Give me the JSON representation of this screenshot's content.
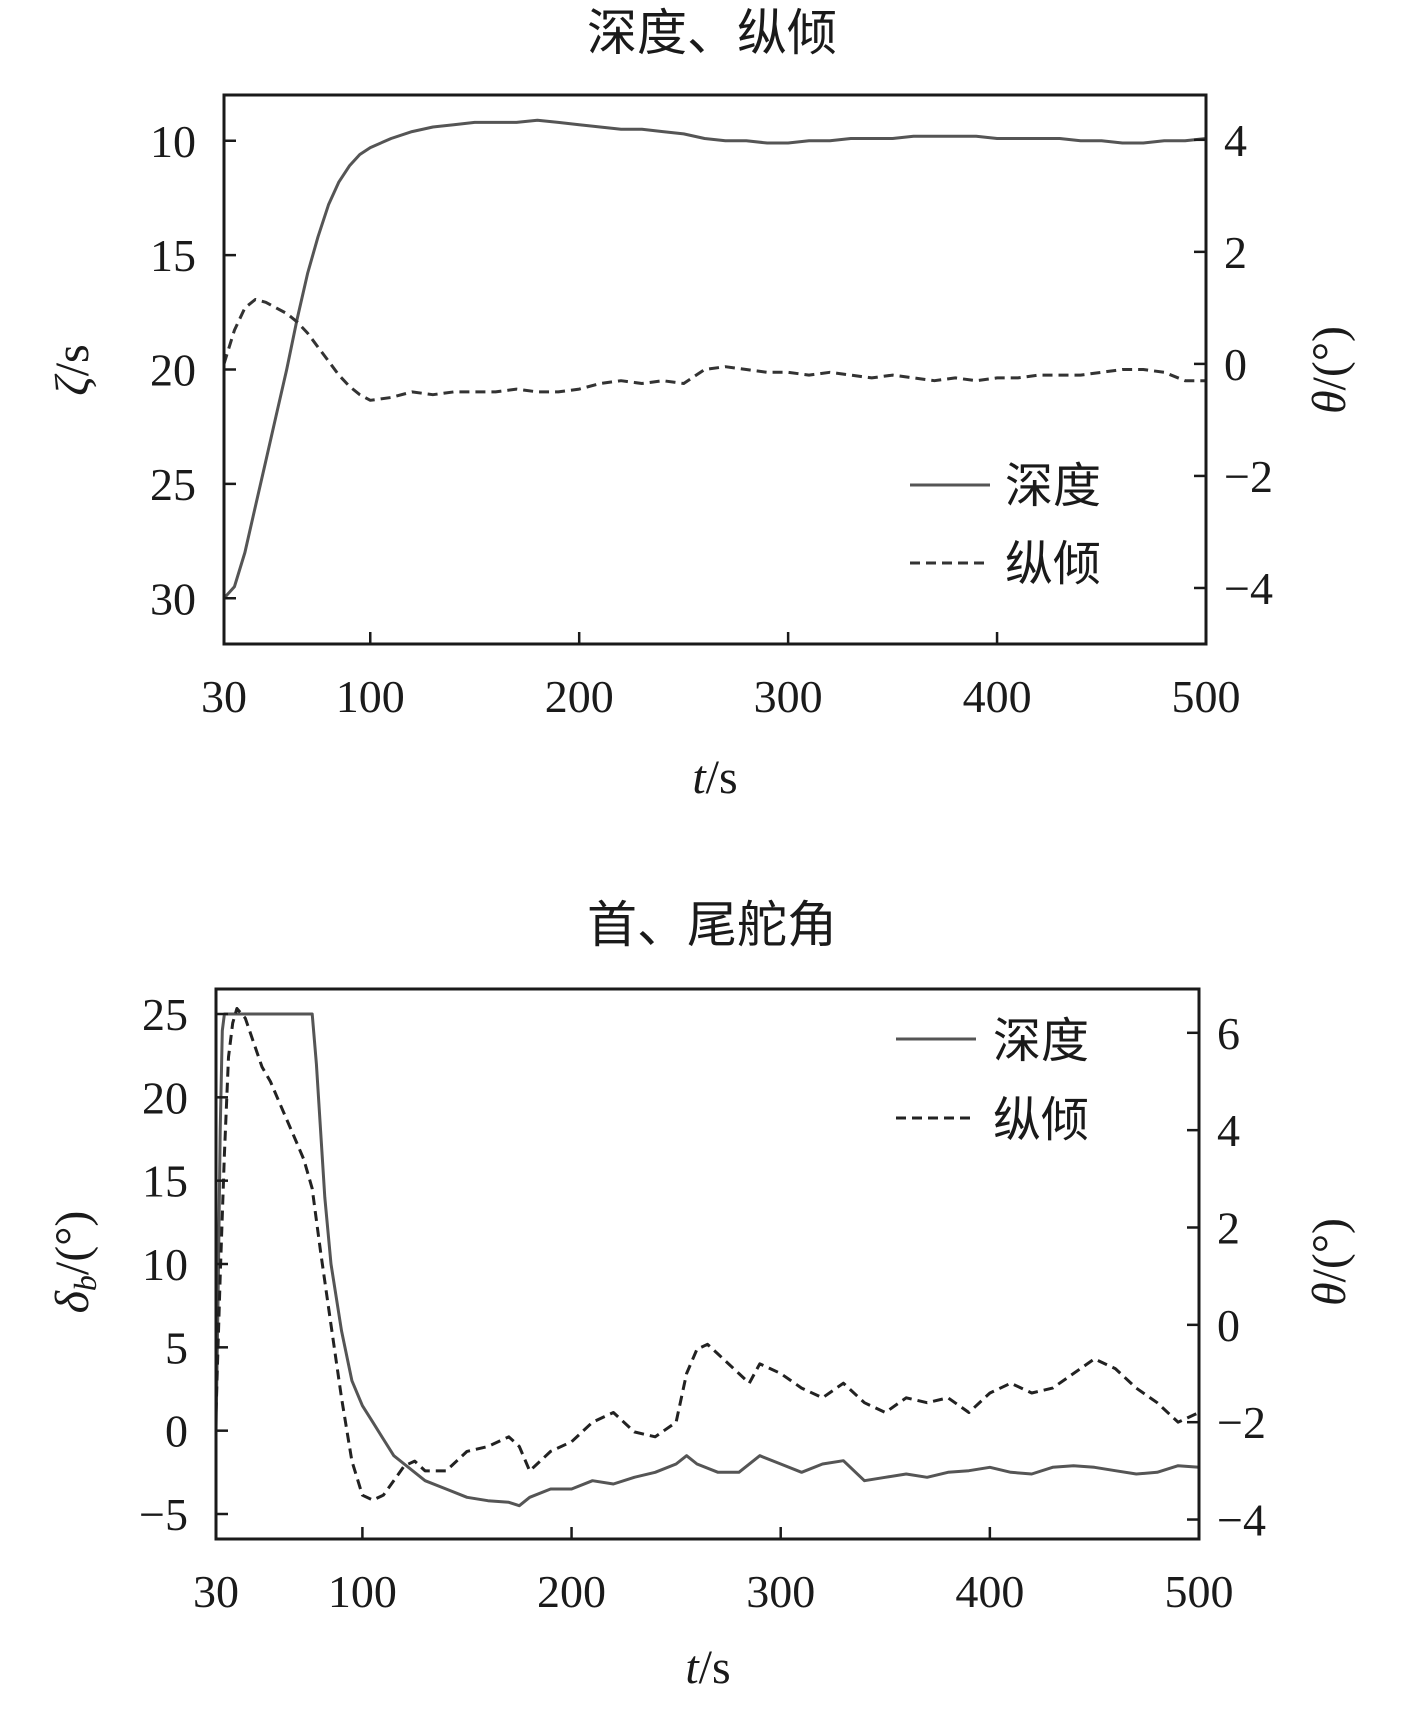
{
  "chart_data": [
    {
      "type": "line",
      "title": "深度、纵倾",
      "xlabel": "t/s",
      "ylabel": "ζ/s",
      "y2label": "θ/(°)",
      "xlim": [
        30,
        500
      ],
      "ylim": [
        32,
        8
      ],
      "y2lim": [
        -5,
        4.8
      ],
      "y_inverted": true,
      "xticks": [
        30,
        100,
        200,
        300,
        400,
        500
      ],
      "yticks": [
        10,
        15,
        20,
        25,
        30
      ],
      "y2ticks": [
        4,
        2,
        0,
        -2,
        -4
      ],
      "legend_position": "lower-right",
      "series": [
        {
          "name": "深度",
          "axis": "left",
          "style": "solid",
          "color": "#555555",
          "x": [
            30,
            35,
            40,
            45,
            50,
            55,
            60,
            65,
            70,
            75,
            80,
            85,
            90,
            95,
            100,
            110,
            120,
            130,
            140,
            150,
            160,
            170,
            180,
            190,
            200,
            210,
            220,
            230,
            240,
            250,
            260,
            270,
            280,
            290,
            300,
            310,
            320,
            330,
            340,
            350,
            360,
            370,
            380,
            390,
            400,
            410,
            420,
            430,
            440,
            450,
            460,
            470,
            480,
            490,
            500
          ],
          "values": [
            30,
            29.5,
            28,
            26,
            24,
            22,
            20,
            17.8,
            15.8,
            14.2,
            12.8,
            11.8,
            11.1,
            10.6,
            10.3,
            9.9,
            9.6,
            9.4,
            9.3,
            9.2,
            9.2,
            9.2,
            9.1,
            9.2,
            9.3,
            9.4,
            9.5,
            9.5,
            9.6,
            9.7,
            9.9,
            10.0,
            10.0,
            10.1,
            10.1,
            10.0,
            10.0,
            9.9,
            9.9,
            9.9,
            9.8,
            9.8,
            9.8,
            9.8,
            9.9,
            9.9,
            9.9,
            9.9,
            10.0,
            10.0,
            10.1,
            10.1,
            10.0,
            10.0,
            9.9
          ]
        },
        {
          "name": "纵倾",
          "axis": "right",
          "style": "dashed",
          "color": "#333333",
          "x": [
            30,
            35,
            40,
            45,
            50,
            55,
            60,
            65,
            70,
            75,
            80,
            85,
            90,
            95,
            100,
            110,
            120,
            130,
            140,
            150,
            160,
            170,
            180,
            190,
            200,
            210,
            220,
            230,
            240,
            250,
            260,
            270,
            280,
            290,
            300,
            310,
            320,
            330,
            340,
            350,
            360,
            370,
            380,
            390,
            400,
            410,
            420,
            430,
            440,
            450,
            460,
            470,
            480,
            490,
            500
          ],
          "values": [
            0,
            0.6,
            1.0,
            1.15,
            1.1,
            1.0,
            0.9,
            0.75,
            0.55,
            0.3,
            0.05,
            -0.2,
            -0.4,
            -0.55,
            -0.65,
            -0.6,
            -0.5,
            -0.55,
            -0.5,
            -0.5,
            -0.5,
            -0.45,
            -0.5,
            -0.5,
            -0.45,
            -0.35,
            -0.3,
            -0.35,
            -0.3,
            -0.35,
            -0.1,
            -0.05,
            -0.1,
            -0.15,
            -0.15,
            -0.2,
            -0.15,
            -0.2,
            -0.25,
            -0.2,
            -0.25,
            -0.3,
            -0.25,
            -0.3,
            -0.25,
            -0.25,
            -0.2,
            -0.2,
            -0.2,
            -0.15,
            -0.1,
            -0.1,
            -0.15,
            -0.3,
            -0.3
          ]
        }
      ]
    },
    {
      "type": "line",
      "title": "首、尾舵角",
      "xlabel": "t/s",
      "ylabel": "δb/(°)",
      "y2label": "θ/(°)",
      "xlim": [
        30,
        500
      ],
      "ylim": [
        -6.5,
        26.5
      ],
      "y2lim": [
        -4.4,
        6.9
      ],
      "xticks": [
        30,
        100,
        200,
        300,
        400,
        500
      ],
      "yticks": [
        25,
        20,
        15,
        10,
        5,
        0,
        -5
      ],
      "y2ticks": [
        6,
        4,
        2,
        0,
        -2,
        -4
      ],
      "legend_position": "top-right",
      "series": [
        {
          "name": "深度",
          "axis": "left",
          "style": "solid",
          "color": "#555555",
          "x": [
            30,
            31,
            32,
            33,
            34,
            40,
            50,
            60,
            70,
            76,
            78,
            80,
            82,
            85,
            90,
            95,
            100,
            105,
            110,
            115,
            120,
            130,
            140,
            150,
            160,
            170,
            175,
            180,
            190,
            200,
            210,
            220,
            230,
            240,
            250,
            255,
            260,
            270,
            280,
            290,
            300,
            310,
            320,
            330,
            340,
            350,
            360,
            370,
            380,
            390,
            400,
            410,
            420,
            430,
            440,
            450,
            460,
            470,
            480,
            490,
            500
          ],
          "values": [
            0,
            8,
            18,
            24,
            25,
            25,
            25,
            25,
            25,
            25,
            22,
            18,
            14,
            10,
            6,
            3,
            1.5,
            0.5,
            -0.5,
            -1.5,
            -2,
            -3,
            -3.5,
            -4,
            -4.2,
            -4.3,
            -4.5,
            -4,
            -3.5,
            -3.5,
            -3,
            -3.2,
            -2.8,
            -2.5,
            -2,
            -1.5,
            -2,
            -2.5,
            -2.5,
            -1.5,
            -2,
            -2.5,
            -2,
            -1.8,
            -3,
            -2.8,
            -2.6,
            -2.8,
            -2.5,
            -2.4,
            -2.2,
            -2.5,
            -2.6,
            -2.2,
            -2.1,
            -2.2,
            -2.4,
            -2.6,
            -2.5,
            -2.1,
            -2.2
          ]
        },
        {
          "name": "纵倾",
          "axis": "right",
          "style": "dashed",
          "color": "#222222",
          "x": [
            30,
            32,
            34,
            36,
            38,
            40,
            44,
            48,
            52,
            56,
            60,
            64,
            68,
            72,
            76,
            80,
            85,
            90,
            95,
            100,
            105,
            110,
            115,
            120,
            125,
            130,
            140,
            150,
            160,
            170,
            175,
            180,
            190,
            200,
            210,
            220,
            230,
            240,
            250,
            255,
            260,
            265,
            270,
            280,
            285,
            290,
            300,
            310,
            320,
            330,
            340,
            350,
            360,
            370,
            380,
            390,
            400,
            410,
            420,
            430,
            440,
            450,
            460,
            470,
            480,
            490,
            500
          ],
          "values": [
            -1.8,
            1,
            3.5,
            5.5,
            6.2,
            6.5,
            6.3,
            5.8,
            5.3,
            5.0,
            4.6,
            4.2,
            3.8,
            3.4,
            2.8,
            1.5,
            0,
            -1.5,
            -2.8,
            -3.5,
            -3.6,
            -3.5,
            -3.2,
            -2.9,
            -2.8,
            -3.0,
            -3.0,
            -2.6,
            -2.5,
            -2.3,
            -2.5,
            -3.0,
            -2.6,
            -2.4,
            -2.0,
            -1.8,
            -2.2,
            -2.3,
            -2.0,
            -1.0,
            -0.5,
            -0.4,
            -0.6,
            -1.0,
            -1.2,
            -0.8,
            -1.0,
            -1.3,
            -1.5,
            -1.2,
            -1.6,
            -1.8,
            -1.5,
            -1.6,
            -1.5,
            -1.8,
            -1.4,
            -1.2,
            -1.4,
            -1.3,
            -1.0,
            -0.7,
            -0.9,
            -1.3,
            -1.6,
            -2.0,
            -1.8
          ]
        }
      ]
    }
  ]
}
